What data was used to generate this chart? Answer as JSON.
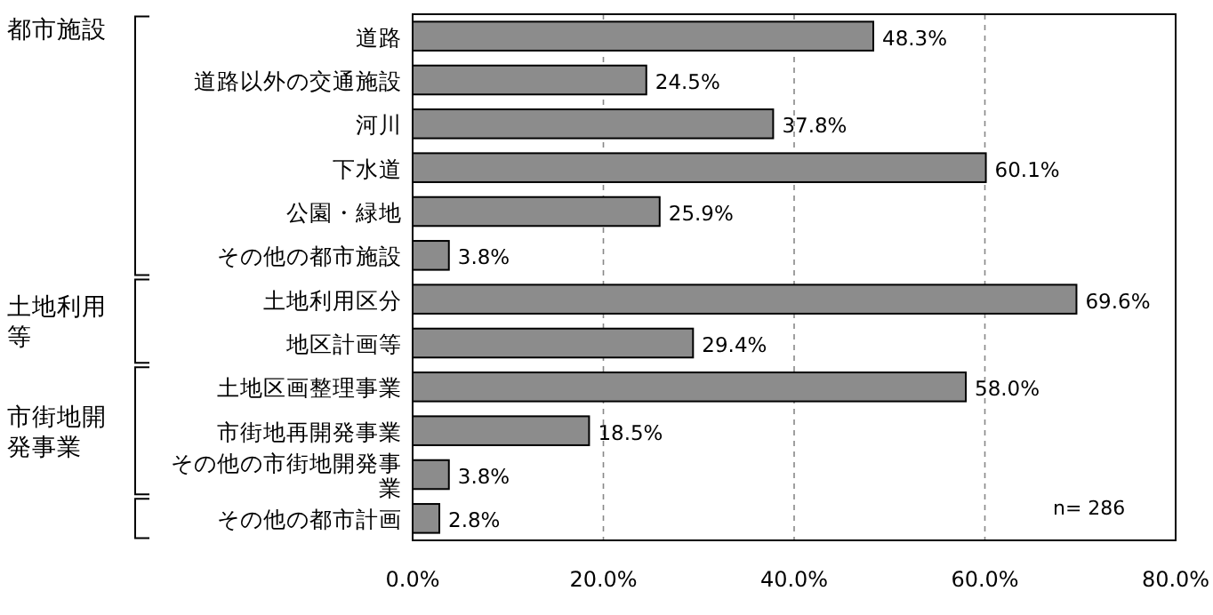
{
  "chart_data": {
    "type": "bar",
    "orientation": "horizontal",
    "grid": "x",
    "value_labels": [
      "48.3%",
      "24.5%",
      "37.8%",
      "60.1%",
      "25.9%",
      "3.8%",
      "69.6%",
      "29.4%",
      "58.0%",
      "18.5%",
      "3.8%",
      "2.8%"
    ],
    "categories": [
      "道路",
      "道路以外の交通施設",
      "河川",
      "下水道",
      "公園・緑地",
      "その他の都市施設",
      "土地利用区分",
      "地区計画等",
      "土地区画整理事業",
      "市街地再開発事業",
      "その他の市街地開発事業",
      "その他の都市計画"
    ],
    "values": [
      48.3,
      24.5,
      37.8,
      60.1,
      25.9,
      3.8,
      69.6,
      29.4,
      58.0,
      18.5,
      3.8,
      2.8
    ],
    "color": "#8c8c8c",
    "xlim": [
      0,
      80
    ],
    "xticks": [
      {
        "value": 0,
        "label": "0.0%"
      },
      {
        "value": 20,
        "label": "20.0%"
      },
      {
        "value": 40,
        "label": "40.0%"
      },
      {
        "value": 60,
        "label": "60.0%"
      },
      {
        "value": 80,
        "label": "80.0%"
      }
    ],
    "annotations": [
      "都市施設",
      "土地利用等",
      "市街地開発事業",
      "n= 286"
    ]
  }
}
